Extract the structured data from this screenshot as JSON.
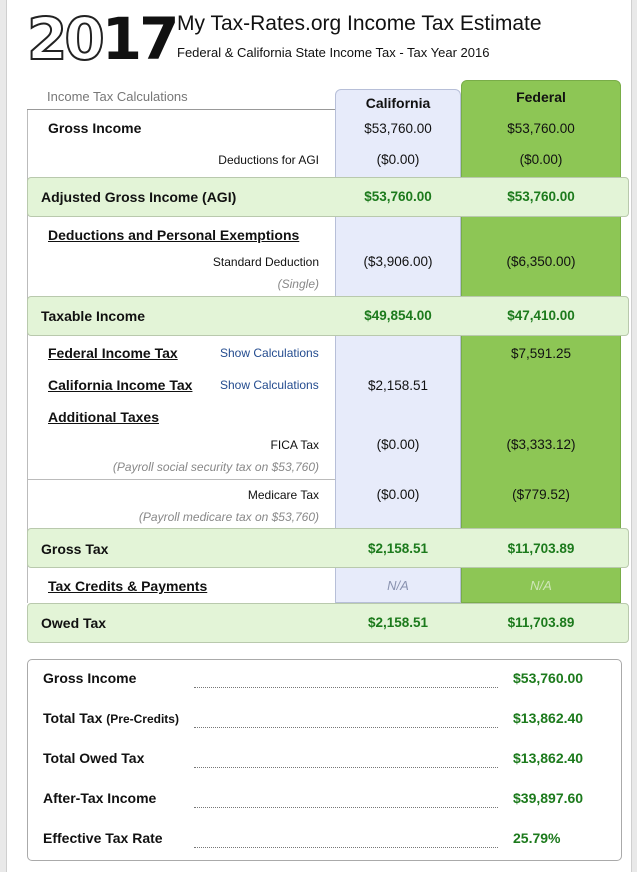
{
  "header": {
    "year_thin": "20",
    "year_bold": "17",
    "title": "My Tax-Rates.org Income Tax Estimate",
    "subtitle": "Federal & California State Income Tax - Tax Year 2016"
  },
  "columns": {
    "calc_label": "Income Tax Calculations",
    "state": "California",
    "federal": "Federal"
  },
  "rows": {
    "gross_income": {
      "label": "Gross Income",
      "ca": "$53,760.00",
      "fed": "$53,760.00"
    },
    "deductions_agi": {
      "label": "Deductions for AGI",
      "ca": "($0.00)",
      "fed": "($0.00)"
    },
    "agi": {
      "label": "Adjusted Gross Income (AGI)",
      "ca": "$53,760.00",
      "fed": "$53,760.00"
    },
    "ded_exemptions": {
      "label": "Deductions and Personal Exemptions"
    },
    "std_deduction": {
      "label": "Standard Deduction",
      "note": "(Single)",
      "ca": "($3,906.00)",
      "fed": "($6,350.00)"
    },
    "taxable_income": {
      "label": "Taxable Income",
      "ca": "$49,854.00",
      "fed": "$47,410.00"
    },
    "federal_tax": {
      "label": "Federal Income Tax",
      "link": "Show Calculations",
      "fed": "$7,591.25"
    },
    "california_tax": {
      "label": "California Income Tax",
      "link": "Show Calculations",
      "ca": "$2,158.51"
    },
    "additional_taxes": {
      "label": "Additional Taxes"
    },
    "fica": {
      "label": "FICA Tax",
      "note": "(Payroll social security tax on $53,760)",
      "ca": "($0.00)",
      "fed": "($3,333.12)"
    },
    "medicare": {
      "label": "Medicare Tax",
      "note": "(Payroll medicare tax on $53,760)",
      "ca": "($0.00)",
      "fed": "($779.52)"
    },
    "gross_tax": {
      "label": "Gross Tax",
      "ca": "$2,158.51",
      "fed": "$11,703.89"
    },
    "credits": {
      "label": "Tax Credits & Payments",
      "ca": "N/A",
      "fed": "N/A"
    },
    "owed_tax": {
      "label": "Owed Tax",
      "ca": "$2,158.51",
      "fed": "$11,703.89"
    }
  },
  "summary": {
    "gross_income": {
      "label": "Gross Income",
      "value": "$53,760.00"
    },
    "total_tax": {
      "label": "Total Tax",
      "label_small": "(Pre-Credits)",
      "value": "$13,862.40"
    },
    "total_owed": {
      "label": "Total Owed Tax",
      "value": "$13,862.40"
    },
    "after_tax": {
      "label": "After-Tax Income",
      "value": "$39,897.60"
    },
    "effective_rate": {
      "label": "Effective Tax Rate",
      "value": "25.79%"
    }
  }
}
